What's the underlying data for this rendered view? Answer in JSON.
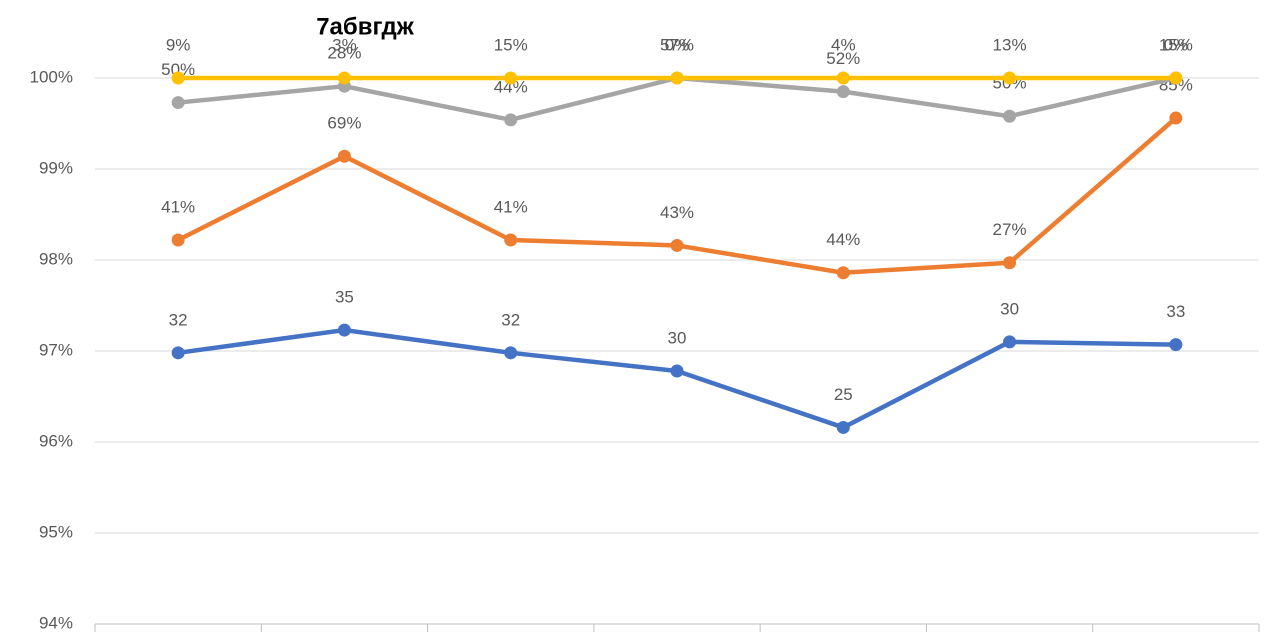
{
  "chart_data": {
    "type": "line",
    "title": "7абвгдж",
    "categories": [
      null,
      null,
      null,
      null,
      null,
      null,
      null
    ],
    "ylim": [
      94,
      100
    ],
    "yticks": [
      {
        "value": 94,
        "label": "94%"
      },
      {
        "value": 95,
        "label": "95%"
      },
      {
        "value": 96,
        "label": "96%"
      },
      {
        "value": 97,
        "label": "97%"
      },
      {
        "value": 98,
        "label": "98%"
      },
      {
        "value": 99,
        "label": "99%"
      },
      {
        "value": 100,
        "label": "100%"
      }
    ],
    "grid": true,
    "series": [
      {
        "color": "#4472c4",
        "values": [
          96.98,
          97.23,
          96.98,
          96.78,
          96.16,
          97.1,
          97.07
        ],
        "labels": [
          "32",
          "35",
          "32",
          "30",
          "25",
          "30",
          "33"
        ]
      },
      {
        "color": "#ed7d31",
        "values": [
          98.22,
          99.14,
          98.22,
          98.16,
          97.86,
          97.97,
          99.56
        ],
        "labels": [
          "41%",
          "69%",
          "41%",
          "43%",
          "44%",
          "27%",
          "85%"
        ]
      },
      {
        "color": "#a5a5a5",
        "values": [
          99.73,
          99.91,
          99.54,
          100,
          99.85,
          99.58,
          100
        ],
        "labels": [
          "50%",
          "28%",
          "44%",
          "0%",
          "52%",
          "50%",
          "0%"
        ]
      },
      {
        "color": "#ffc000",
        "values": [
          100,
          100,
          100,
          100,
          100,
          100,
          100
        ],
        "labels": [
          "9%",
          "3%",
          "15%",
          "57%",
          "4%",
          "13%",
          "15%"
        ]
      }
    ]
  }
}
